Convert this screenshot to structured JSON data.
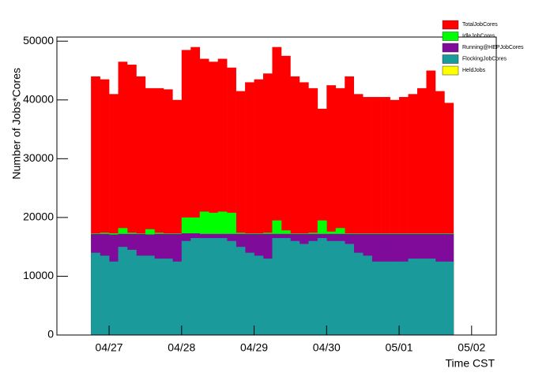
{
  "chart_data": {
    "type": "histogram",
    "y_label": "Number of Jobs*Cores",
    "x_label": "Time CST",
    "xlim": [
      -0.72,
      5.34
    ],
    "ylim": [
      0,
      50700
    ],
    "xticks": [
      {
        "value": 0,
        "label": "04/27"
      },
      {
        "value": 1,
        "label": "04/28"
      },
      {
        "value": 2,
        "label": "04/29"
      },
      {
        "value": 3,
        "label": "04/30"
      },
      {
        "value": 4,
        "label": "05/01"
      },
      {
        "value": 5,
        "label": "05/02"
      }
    ],
    "yticks": [
      0,
      10000,
      20000,
      30000,
      40000,
      50000
    ],
    "legend": "upper right",
    "bins": [
      -0.25,
      -0.125,
      0,
      0.125,
      0.25,
      0.375,
      0.5,
      0.625,
      0.75,
      0.875,
      1,
      1.125,
      1.25,
      1.375,
      1.5,
      1.625,
      1.75,
      1.875,
      2,
      2.125,
      2.25,
      2.375,
      2.5,
      2.625,
      2.75,
      2.875,
      3,
      3.125,
      3.25,
      3.375,
      3.5,
      3.625,
      3.75,
      3.875,
      4,
      4.125,
      4.25,
      4.375,
      4.5,
      4.625,
      4.75
    ],
    "series": [
      {
        "name": "TotalJobCores",
        "color": "#ff0000",
        "values": [
          44000,
          43500,
          41000,
          46500,
          46000,
          44000,
          42000,
          42000,
          41800,
          40000,
          48500,
          49000,
          47000,
          46500,
          47000,
          45500,
          41500,
          43000,
          43500,
          44500,
          49000,
          47500,
          44000,
          43000,
          42000,
          38500,
          42500,
          42000,
          44000,
          41000,
          40500,
          40500,
          40500,
          40000,
          40500,
          41000,
          42000,
          45000,
          41500,
          39500
        ]
      },
      {
        "name": "IdleJobCores",
        "color": "#00ff00",
        "values": [
          17300,
          17400,
          17300,
          18200,
          17400,
          17300,
          18000,
          17400,
          17300,
          17300,
          20000,
          20000,
          21000,
          20800,
          21000,
          20800,
          17400,
          17300,
          17300,
          17400,
          19500,
          17800,
          17300,
          17300,
          17400,
          19500,
          17600,
          18200,
          17300,
          17300,
          17300,
          17300,
          17300,
          17300,
          17300,
          17300,
          17300,
          17300,
          17300,
          17300
        ]
      },
      {
        "name": "Running@HEPJobCores",
        "color": "#800a9a",
        "values": [
          17200,
          17200,
          17100,
          17200,
          17200,
          17200,
          17100,
          17200,
          17200,
          17200,
          17300,
          17300,
          17200,
          17200,
          17200,
          17200,
          17200,
          17200,
          17200,
          17200,
          17200,
          17200,
          17200,
          17200,
          17200,
          17200,
          17200,
          17200,
          17200,
          17200,
          17200,
          17200,
          17200,
          17200,
          17200,
          17200,
          17200,
          17200,
          17200,
          17200
        ]
      },
      {
        "name": "FlockingJobCores",
        "color": "#1a9a9a",
        "values": [
          14000,
          13500,
          12500,
          15000,
          14500,
          13500,
          13500,
          13000,
          13000,
          12500,
          16000,
          16500,
          16500,
          16500,
          16500,
          16000,
          15000,
          14000,
          13500,
          13000,
          16500,
          16500,
          16000,
          15500,
          16000,
          16500,
          16000,
          16000,
          15500,
          14000,
          13500,
          12500,
          12500,
          12500,
          12500,
          13000,
          13000,
          13000,
          12500,
          12500
        ]
      },
      {
        "name": "HeldJobs",
        "color": "#ffff00",
        "values": [
          0,
          0,
          0,
          0,
          0,
          0,
          0,
          0,
          0,
          0,
          0,
          0,
          0,
          0,
          0,
          0,
          0,
          0,
          0,
          0,
          0,
          0,
          0,
          0,
          0,
          0,
          0,
          0,
          0,
          0,
          0,
          0,
          0,
          0,
          0,
          0,
          0,
          0,
          0,
          0
        ]
      }
    ]
  }
}
